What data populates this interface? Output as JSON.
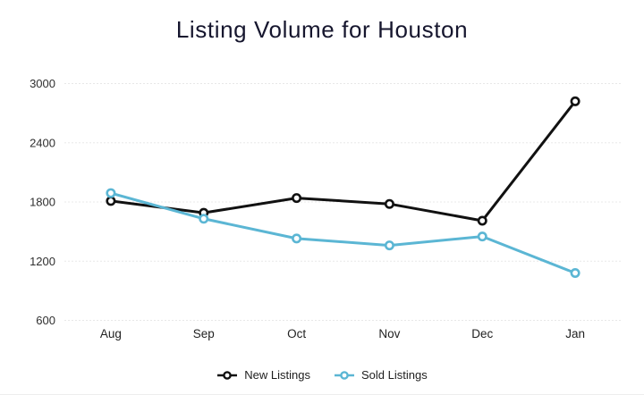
{
  "title": "Listing Volume for Houston",
  "chart_data": {
    "type": "line",
    "title": "Listing Volume for Houston",
    "categories": [
      "Aug",
      "Sep",
      "Oct",
      "Nov",
      "Dec",
      "Jan"
    ],
    "series": [
      {
        "name": "New Listings",
        "color": "#111111",
        "values": [
          1810,
          1690,
          1840,
          1780,
          1610,
          2820
        ]
      },
      {
        "name": "Sold Listings",
        "color": "#5bb6d4",
        "values": [
          1890,
          1630,
          1430,
          1360,
          1450,
          1080
        ]
      }
    ],
    "xlabel": "",
    "ylabel": "",
    "ylim": [
      600,
      3000
    ],
    "yticks": [
      600,
      1200,
      1800,
      2400,
      3000
    ],
    "grid": "horizontal-dashed",
    "legend_position": "bottom-center",
    "marker": "hollow-circle"
  },
  "colors": {
    "title_text": "#16162e",
    "axis_text": "#2f2f2f",
    "gridline": "#e8e8e8",
    "background": "#ffffff",
    "new_listings": "#111111",
    "sold_listings": "#5bb6d4"
  }
}
